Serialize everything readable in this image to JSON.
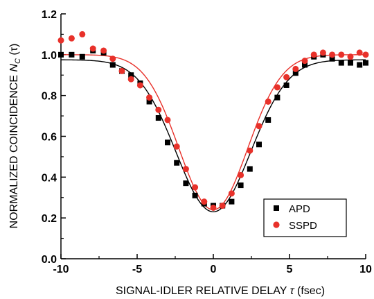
{
  "chart_data": {
    "type": "scatter",
    "xlabel_text": "SIGNAL-IDLER RELATIVE DELAY ",
    "xlabel_symbol": "τ",
    "xlabel_unit": " (fsec)",
    "ylabel_text": "NORMALIZED COINCIDENCE ",
    "ylabel_symbol": "N",
    "ylabel_sub": "C",
    "ylabel_paren": " (τ)",
    "xlim": [
      -10,
      10
    ],
    "ylim": [
      0.0,
      1.2
    ],
    "x_ticks": [
      -10,
      -5,
      0,
      5,
      10
    ],
    "x_tick_labels": [
      "-10",
      "-5",
      "0",
      "5",
      "10"
    ],
    "y_ticks": [
      0.0,
      0.2,
      0.4,
      0.6,
      0.8,
      1.0,
      1.2
    ],
    "y_tick_labels": [
      "0.0",
      "0.2",
      "0.4",
      "0.6",
      "0.8",
      "1.0",
      "1.2"
    ],
    "grid": false,
    "legend_position": "bottom-right",
    "series": [
      {
        "name": "APD",
        "marker": "square",
        "color": "#000000",
        "points": [
          [
            -10.0,
            1.0
          ],
          [
            -9.3,
            1.0
          ],
          [
            -8.6,
            0.99
          ],
          [
            -7.9,
            1.02
          ],
          [
            -7.2,
            1.01
          ],
          [
            -6.6,
            0.95
          ],
          [
            -6.0,
            0.92
          ],
          [
            -5.4,
            0.9
          ],
          [
            -4.8,
            0.86
          ],
          [
            -4.2,
            0.77
          ],
          [
            -3.6,
            0.69
          ],
          [
            -3.0,
            0.57
          ],
          [
            -2.4,
            0.47
          ],
          [
            -1.8,
            0.37
          ],
          [
            -1.2,
            0.31
          ],
          [
            -0.6,
            0.27
          ],
          [
            0.0,
            0.26
          ],
          [
            0.6,
            0.26
          ],
          [
            1.2,
            0.28
          ],
          [
            1.8,
            0.36
          ],
          [
            2.4,
            0.44
          ],
          [
            3.0,
            0.56
          ],
          [
            3.6,
            0.68
          ],
          [
            4.2,
            0.79
          ],
          [
            4.8,
            0.85
          ],
          [
            5.4,
            0.91
          ],
          [
            6.0,
            0.95
          ],
          [
            6.6,
            0.99
          ],
          [
            7.2,
            1.0
          ],
          [
            7.8,
            0.98
          ],
          [
            8.4,
            0.96
          ],
          [
            9.0,
            0.96
          ],
          [
            9.6,
            0.95
          ],
          [
            10.0,
            0.96
          ]
        ],
        "fit": {
          "baseline": 0.975,
          "depth": 0.745,
          "center": 0.0,
          "sigma": 2.45
        }
      },
      {
        "name": "SSPD",
        "marker": "circle",
        "color": "#e8312a",
        "points": [
          [
            -10.0,
            1.07
          ],
          [
            -9.3,
            1.08
          ],
          [
            -8.6,
            1.1
          ],
          [
            -7.9,
            1.03
          ],
          [
            -7.2,
            1.02
          ],
          [
            -6.6,
            0.98
          ],
          [
            -6.0,
            0.92
          ],
          [
            -5.4,
            0.88
          ],
          [
            -4.8,
            0.85
          ],
          [
            -4.2,
            0.79
          ],
          [
            -3.6,
            0.73
          ],
          [
            -3.0,
            0.68
          ],
          [
            -2.4,
            0.55
          ],
          [
            -1.8,
            0.44
          ],
          [
            -1.2,
            0.35
          ],
          [
            -0.6,
            0.28
          ],
          [
            0.0,
            0.25
          ],
          [
            0.6,
            0.26
          ],
          [
            1.2,
            0.32
          ],
          [
            1.8,
            0.41
          ],
          [
            2.4,
            0.53
          ],
          [
            3.0,
            0.65
          ],
          [
            3.6,
            0.77
          ],
          [
            4.2,
            0.84
          ],
          [
            4.8,
            0.89
          ],
          [
            5.4,
            0.93
          ],
          [
            6.0,
            0.97
          ],
          [
            6.6,
            1.0
          ],
          [
            7.2,
            1.01
          ],
          [
            7.8,
            1.0
          ],
          [
            8.4,
            1.0
          ],
          [
            9.0,
            0.99
          ],
          [
            9.6,
            1.01
          ],
          [
            10.0,
            1.0
          ]
        ],
        "fit": {
          "baseline": 1.0,
          "depth": 0.76,
          "center": 0.0,
          "sigma": 2.25
        }
      }
    ]
  }
}
